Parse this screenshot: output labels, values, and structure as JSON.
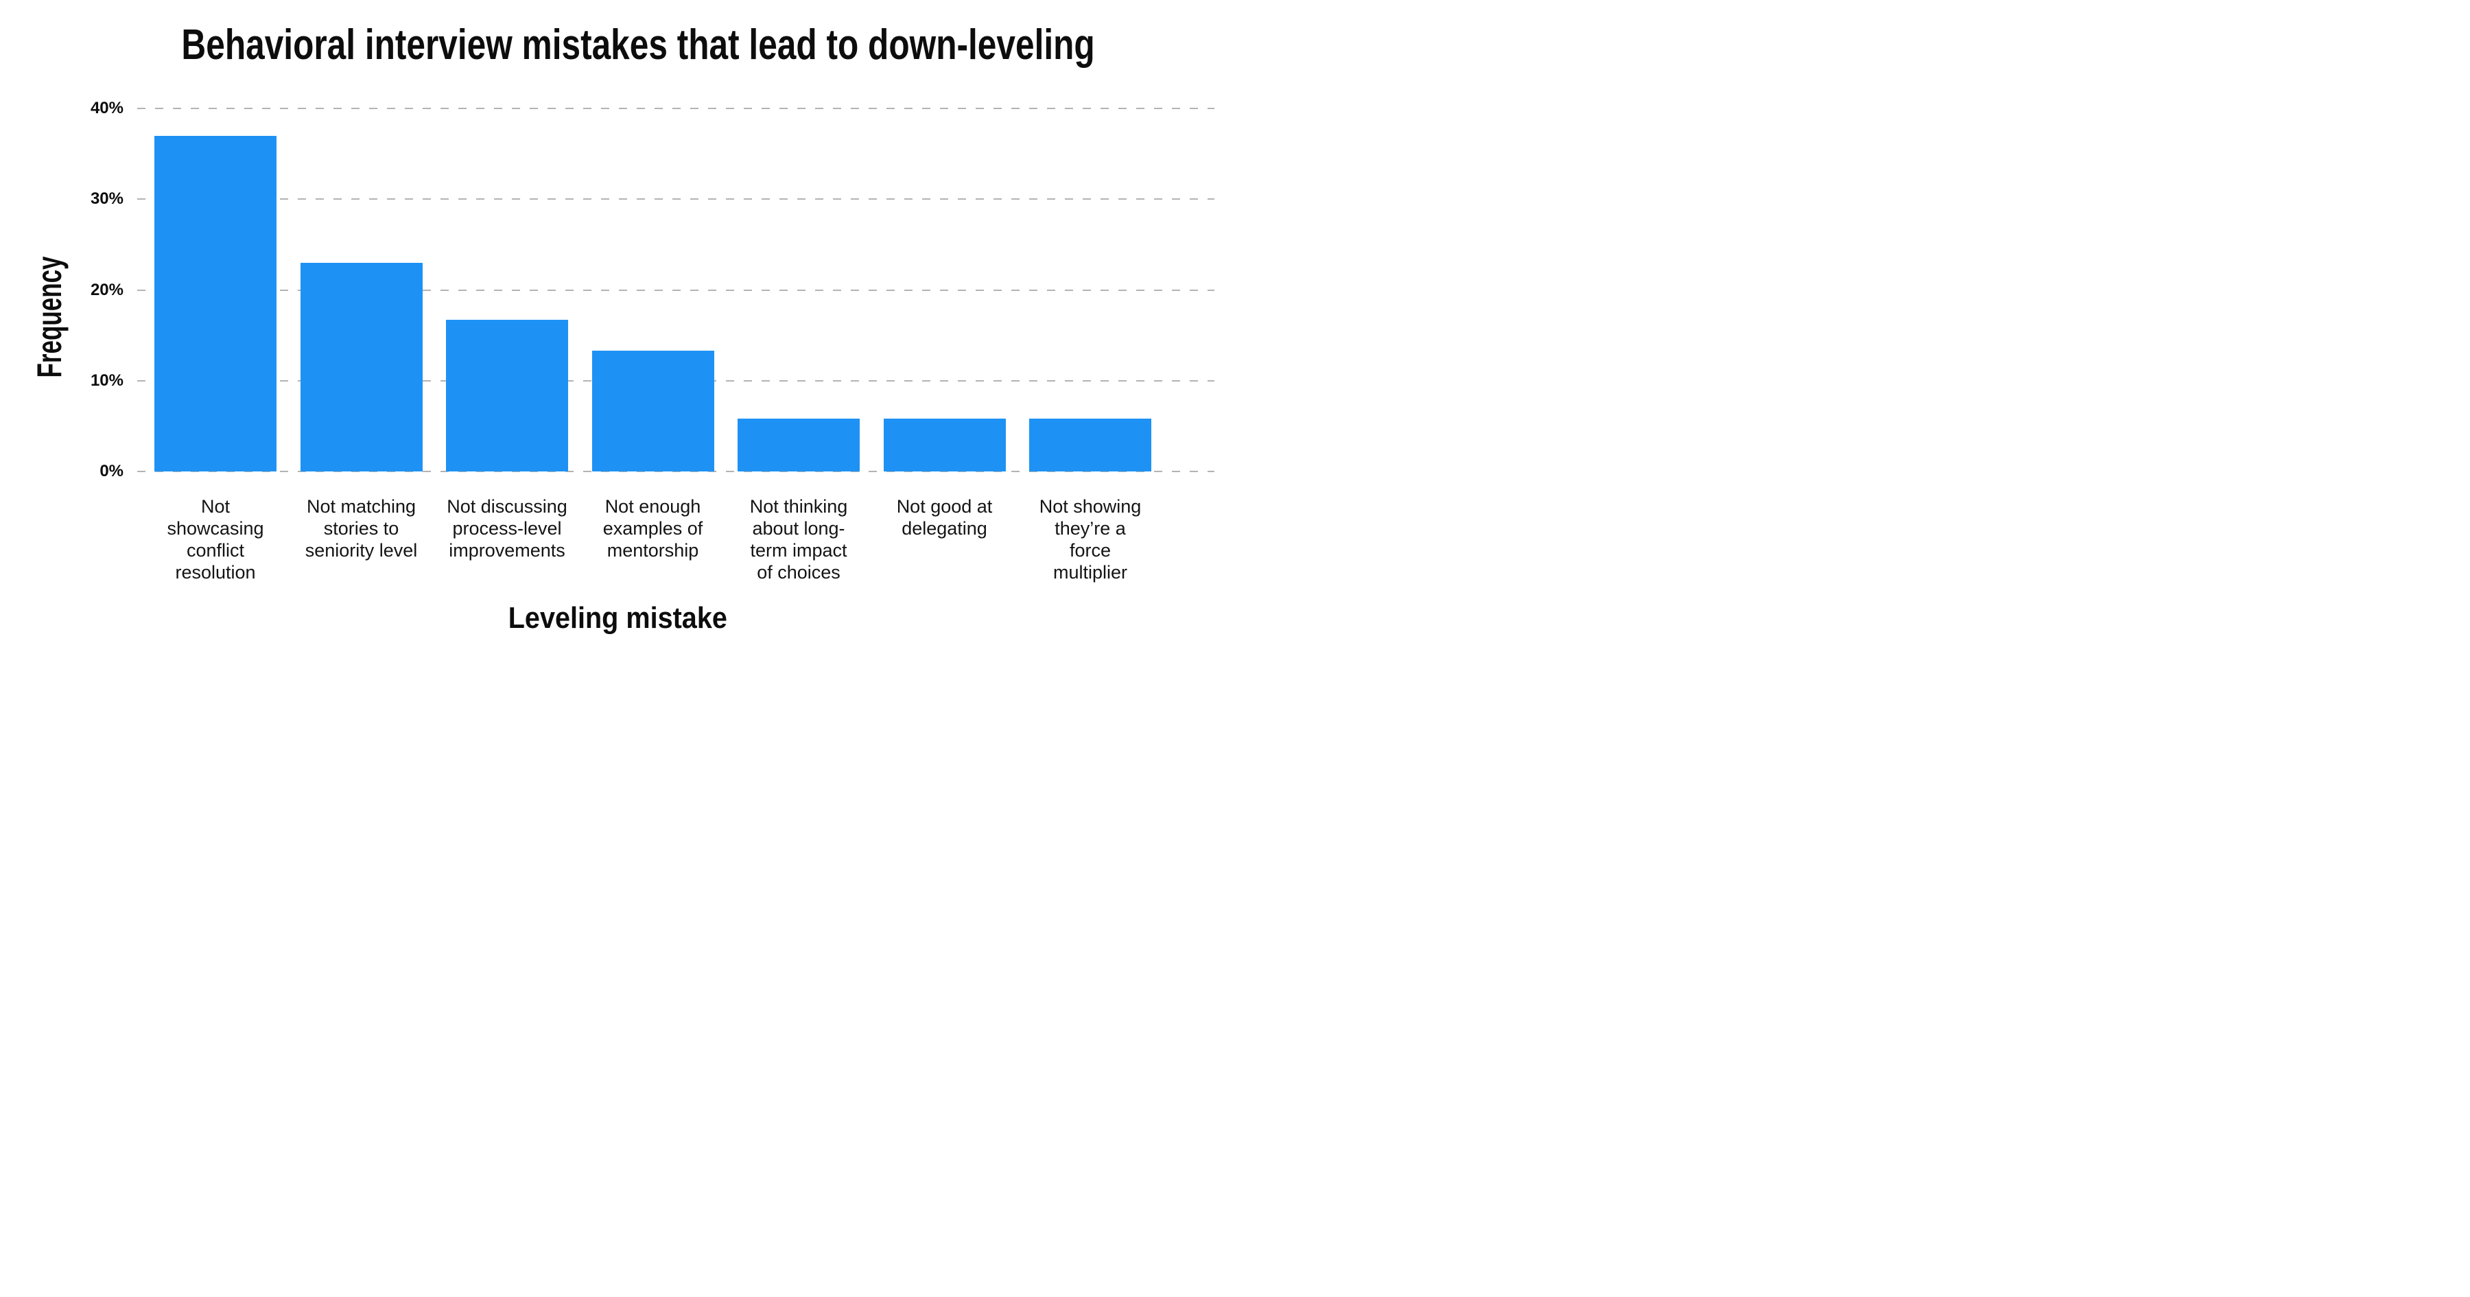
{
  "chart_data": {
    "type": "bar",
    "title": "Behavioral interview mistakes that lead to down-leveling",
    "xlabel": "Leveling mistake",
    "ylabel": "Frequency",
    "ylim": [
      0,
      40
    ],
    "yticks": [
      {
        "value": 0,
        "label": "0%"
      },
      {
        "value": 10,
        "label": "10%"
      },
      {
        "value": 20,
        "label": "20%"
      },
      {
        "value": 30,
        "label": "30%"
      },
      {
        "value": 40,
        "label": "40%"
      }
    ],
    "grid": "horizontal-dashed",
    "legend": "none",
    "categories": [
      "Not showcasing conflict resolution",
      "Not matching stories to seniority level",
      "Not discussing process-level improvements",
      "Not enough examples of mentorship",
      "Not thinking about long-term impact of  choices",
      "Not good at delegating",
      "Not showing they’re a force multiplier"
    ],
    "category_lines": [
      [
        "Not",
        "showcasing",
        "conflict",
        "resolution"
      ],
      [
        "Not matching",
        "stories to",
        "seniority level"
      ],
      [
        "Not discussing",
        "process-level",
        "improvements"
      ],
      [
        "Not enough",
        "examples of",
        "mentorship"
      ],
      [
        "Not thinking",
        "about long-",
        "term impact",
        "of  choices"
      ],
      [
        "Not good at",
        "delegating"
      ],
      [
        "Not showing",
        "they’re a",
        "force",
        "multiplier"
      ]
    ],
    "values": [
      37,
      23,
      16.7,
      13.3,
      5.8,
      5.8,
      5.8
    ],
    "colors": {
      "bar": "#1E92F4",
      "gridline": "#b3b3b3",
      "text": "#0d0d0d",
      "background": "#ffffff"
    }
  }
}
